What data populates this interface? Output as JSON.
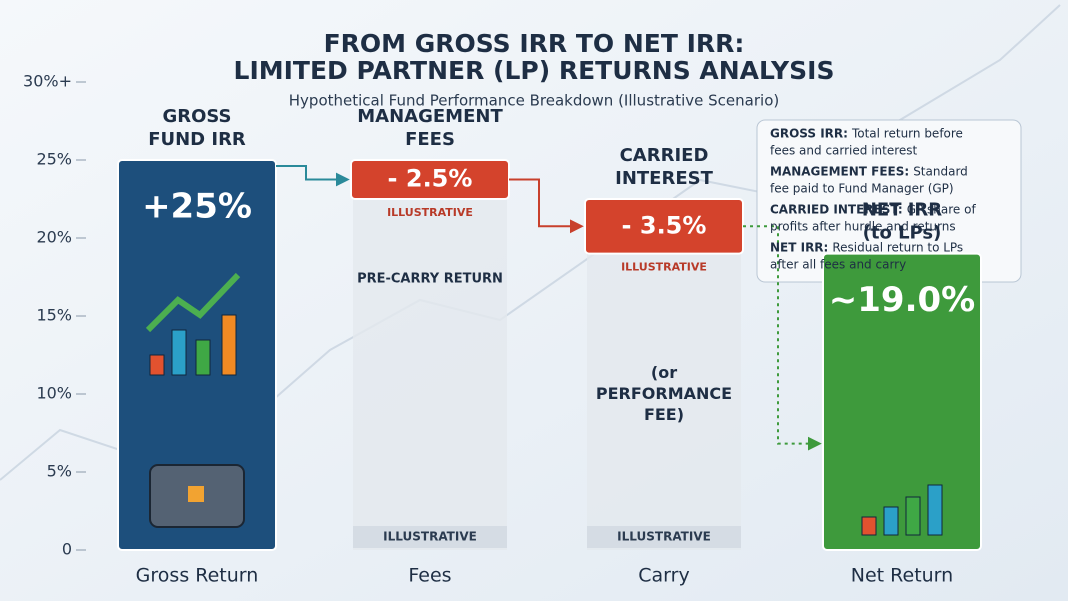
{
  "chart_data": {
    "type": "waterfall",
    "title": [
      "FROM GROSS IRR TO NET IRR:",
      "LIMITED PARTNER (LP) RETURNS ANALYSIS"
    ],
    "subtitle": "Hypothetical Fund Performance Breakdown (Illustrative Scenario)",
    "categories": [
      "Gross Return",
      "Fees",
      "Carry",
      "Net Return"
    ],
    "values": [
      25,
      -2.5,
      -3.5,
      19.0
    ],
    "value_labels": [
      "+25%",
      "- 2.5%",
      "- 3.5%",
      "~19.0%"
    ],
    "measures": [
      "total",
      "relative",
      "relative",
      "total"
    ],
    "colors": [
      "#1d4f7c",
      "#d4432c",
      "#d4432c",
      "#3e9a3c"
    ],
    "bar_headings": [
      [
        "GROSS",
        "FUND IRR"
      ],
      [
        "MANAGEMENT",
        "FEES"
      ],
      [
        "CARRIED",
        "INTEREST"
      ],
      [
        "NET IRR",
        "(to LPs)"
      ]
    ],
    "box_notes": [
      null,
      "ILLUSTRATIVE",
      "ILLUSTRATIVE",
      null
    ],
    "column_notes": [
      null,
      [
        "PRE-CARRY RETURN"
      ],
      [
        "(or",
        "PERFORMANCE",
        "FEE)"
      ],
      null
    ],
    "footer_notes": [
      null,
      "ILLUSTRATIVE",
      "ILLUSTRATIVE",
      null
    ],
    "ylim": [
      0,
      30
    ],
    "yticks": [
      0,
      {
        "value": 5,
        "label": "5%"
      },
      {
        "value": 10,
        "label": "10%"
      },
      {
        "value": 15,
        "label": "15%"
      },
      {
        "value": 20,
        "label": "20%"
      },
      {
        "value": 25,
        "label": "25%"
      },
      {
        "value": 30,
        "label": "30%+"
      }
    ],
    "definitions": [
      {
        "term": "GROSS IRR:",
        "lines": [
          "Total return before",
          "fees and carried interest"
        ]
      },
      {
        "term": "MANAGEMENT FEES:",
        "lines": [
          "Standard",
          "fee paid to Fund Manager (GP)"
        ]
      },
      {
        "term": "CARRIED INTEREST:",
        "lines": [
          "GP share of",
          "profits after hurdle and returns"
        ]
      },
      {
        "term": "NET IRR:",
        "lines": [
          "Residual return to LPs",
          "after all fees and carry"
        ]
      }
    ]
  }
}
